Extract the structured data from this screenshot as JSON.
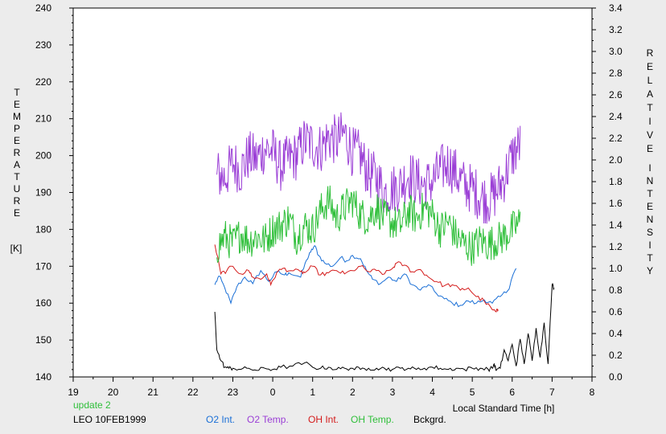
{
  "chart_data": {
    "type": "line",
    "left_axis_letters": [
      "T",
      "E",
      "M",
      "P",
      "E",
      "R",
      "A",
      "T",
      "U",
      "R",
      "E"
    ],
    "left_axis_unit": "[K]",
    "right_axis_words": [
      [
        "R",
        "E",
        "L",
        "A",
        "T",
        "I",
        "V",
        "E"
      ],
      [
        "I",
        "N",
        "T",
        "E",
        "N",
        "S",
        "I",
        "T",
        "Y"
      ]
    ],
    "xlabel": "Local Standard Time [h]",
    "x_tick_labels": [
      "19",
      "20",
      "21",
      "22",
      "23",
      "0",
      "1",
      "2",
      "3",
      "4",
      "5",
      "6",
      "7",
      "8"
    ],
    "xlim": [
      19,
      32
    ],
    "y_left_tick_labels": [
      "140",
      "150",
      "160",
      "170",
      "180",
      "190",
      "200",
      "210",
      "220",
      "230",
      "240"
    ],
    "ylim_left": [
      140,
      240
    ],
    "y_right_tick_labels": [
      "0.0",
      "0.2",
      "0.4",
      "0.6",
      "0.8",
      "1.0",
      "1.2",
      "1.4",
      "1.6",
      "1.8",
      "2.0",
      "2.2",
      "2.4",
      "2.6",
      "2.8",
      "3.0",
      "3.2",
      "3.4"
    ],
    "ylim_right": [
      0,
      3.4
    ],
    "grid": false,
    "footer": {
      "update": "update 2",
      "site": "LEO 10FEB1999"
    },
    "series": [
      {
        "name": "O2 Int.",
        "axis": "right",
        "color": "#1a6fd6",
        "style": "smooth",
        "x": [
          22.55,
          22.65,
          22.8,
          22.95,
          23.1,
          23.3,
          23.5,
          23.7,
          23.9,
          24.1,
          24.3,
          24.4,
          24.7,
          24.85,
          24.95,
          25.05,
          25.15,
          25.3,
          25.5,
          25.7,
          25.85,
          26.0,
          26.2,
          26.35,
          26.5,
          26.7,
          26.9,
          27.1,
          27.3,
          27.5,
          27.7,
          27.9,
          28.1,
          28.3,
          28.5,
          28.7,
          28.9,
          29.1,
          29.3,
          29.5,
          29.7,
          29.9,
          30.0,
          30.1
        ],
        "y": [
          0.85,
          0.93,
          0.82,
          0.68,
          0.83,
          0.92,
          0.86,
          0.98,
          0.88,
          0.97,
          0.94,
          0.96,
          0.92,
          1.08,
          1.15,
          1.21,
          1.12,
          1.05,
          1.02,
          1.1,
          1.07,
          1.12,
          1.09,
          0.98,
          0.9,
          0.86,
          0.92,
          0.88,
          0.95,
          0.85,
          0.8,
          0.85,
          0.77,
          0.72,
          0.68,
          0.66,
          0.7,
          0.68,
          0.71,
          0.68,
          0.74,
          0.8,
          0.92,
          1.0
        ]
      },
      {
        "name": "O2 Temp.",
        "axis": "left",
        "color": "#9b3fd6",
        "style": "noisy",
        "x": [
          22.6,
          22.8,
          23.0,
          23.2,
          23.4,
          23.6,
          23.8,
          24.0,
          24.2,
          24.4,
          24.6,
          24.8,
          25.0,
          25.2,
          25.4,
          25.6,
          25.8,
          26.0,
          26.2,
          26.4,
          26.6,
          26.8,
          27.0,
          27.2,
          27.4,
          27.6,
          27.8,
          28.0,
          28.2,
          28.4,
          28.6,
          28.8,
          29.0,
          29.2,
          29.4,
          29.6,
          29.8,
          30.0,
          30.2
        ],
        "y": [
          195,
          194,
          198,
          196,
          200,
          199,
          202,
          201,
          197,
          199,
          200,
          204,
          203,
          202,
          205,
          204,
          206,
          201,
          200,
          195,
          194,
          190,
          191,
          192,
          195,
          193,
          192,
          193,
          196,
          198,
          195,
          192,
          191,
          189,
          188,
          190,
          194,
          200,
          203
        ],
        "amp": 7
      },
      {
        "name": "OH Int.",
        "axis": "right",
        "color": "#d41a1a",
        "style": "smooth",
        "x": [
          22.55,
          22.7,
          22.85,
          23.0,
          23.2,
          23.4,
          23.5,
          23.7,
          23.85,
          23.95,
          24.1,
          24.25,
          24.45,
          24.7,
          24.8,
          25.0,
          25.2,
          25.4,
          25.6,
          25.8,
          26.0,
          26.2,
          26.4,
          26.6,
          26.8,
          27.0,
          27.1,
          27.3,
          27.5,
          27.7,
          27.9,
          28.1,
          28.3,
          28.5,
          28.7,
          28.9,
          29.1,
          29.3,
          29.5,
          29.6,
          29.65
        ],
        "y": [
          1.22,
          0.95,
          0.98,
          1.02,
          0.95,
          0.98,
          0.92,
          0.9,
          0.95,
          0.85,
          0.96,
          1.0,
          0.98,
          0.97,
          0.96,
          1.02,
          0.94,
          0.96,
          0.98,
          0.95,
          0.98,
          1.02,
          0.97,
          0.98,
          0.95,
          1.0,
          1.05,
          1.03,
          0.97,
          0.99,
          0.92,
          0.88,
          0.84,
          0.85,
          0.8,
          0.82,
          0.74,
          0.7,
          0.62,
          0.6,
          0.62
        ]
      },
      {
        "name": "OH Temp.",
        "axis": "left",
        "color": "#2fbf3a",
        "style": "noisy",
        "x": [
          22.6,
          22.8,
          23.0,
          23.2,
          23.4,
          23.6,
          23.8,
          24.0,
          24.2,
          24.4,
          24.6,
          24.8,
          25.0,
          25.2,
          25.4,
          25.6,
          25.8,
          26.0,
          26.2,
          26.4,
          26.6,
          26.8,
          27.0,
          27.2,
          27.4,
          27.6,
          27.8,
          28.0,
          28.2,
          28.4,
          28.6,
          28.8,
          29.0,
          29.2,
          29.4,
          29.6,
          29.8,
          30.0,
          30.2
        ],
        "y": [
          175,
          178,
          176,
          179,
          177,
          178,
          177,
          180,
          181,
          183,
          178,
          181,
          180,
          185,
          188,
          183,
          186,
          188,
          184,
          183,
          186,
          183,
          182,
          181,
          185,
          183,
          186,
          184,
          180,
          182,
          178,
          176,
          175,
          177,
          176,
          177,
          178,
          180,
          182
        ],
        "amp": 5
      },
      {
        "name": "Bckgrd.",
        "axis": "right",
        "color": "#000000",
        "style": "smooth",
        "x": [
          22.55,
          22.6,
          22.7,
          22.8,
          22.9,
          23.0,
          23.2,
          23.4,
          23.6,
          23.8,
          24.0,
          24.2,
          24.5,
          24.8,
          25.0,
          25.2,
          25.4,
          25.6,
          25.8,
          26.0,
          26.2,
          26.4,
          26.6,
          26.8,
          27.0,
          27.2,
          27.4,
          27.6,
          27.8,
          28.0,
          28.2,
          28.4,
          28.6,
          28.8,
          29.0,
          29.2,
          29.4,
          29.5,
          29.55,
          29.6,
          29.7,
          29.8,
          29.9,
          30.0,
          30.1,
          30.2,
          30.3,
          30.4,
          30.5,
          30.6,
          30.7,
          30.8,
          30.9,
          31.0,
          31.05
        ],
        "y": [
          0.6,
          0.25,
          0.15,
          0.09,
          0.08,
          0.08,
          0.07,
          0.08,
          0.06,
          0.08,
          0.07,
          0.09,
          0.1,
          0.13,
          0.09,
          0.08,
          0.09,
          0.07,
          0.08,
          0.08,
          0.07,
          0.08,
          0.08,
          0.08,
          0.07,
          0.08,
          0.08,
          0.07,
          0.08,
          0.09,
          0.08,
          0.07,
          0.08,
          0.07,
          0.08,
          0.08,
          0.07,
          0.08,
          0.12,
          0.06,
          0.08,
          0.25,
          0.15,
          0.3,
          0.1,
          0.35,
          0.12,
          0.4,
          0.15,
          0.45,
          0.18,
          0.5,
          0.12,
          0.85,
          0.82
        ]
      }
    ]
  }
}
